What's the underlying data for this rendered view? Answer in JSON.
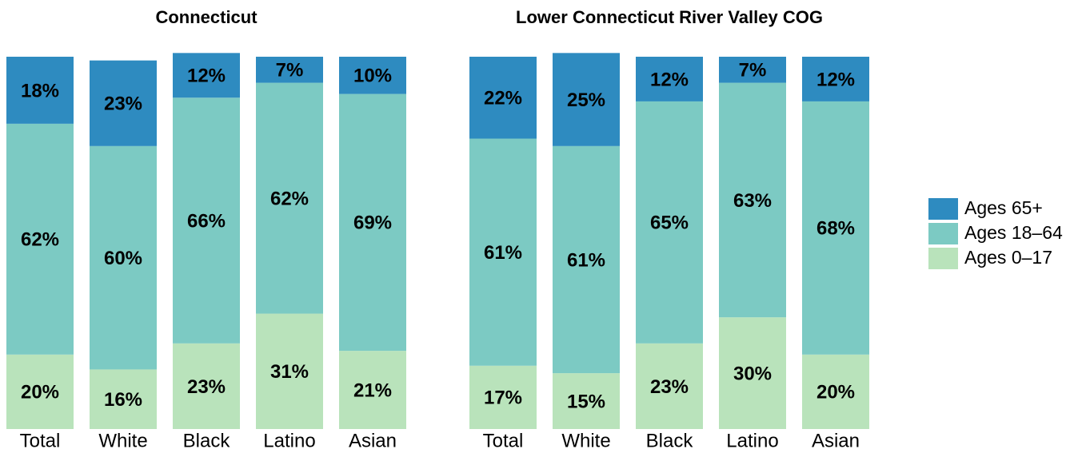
{
  "chart_data": [
    {
      "type": "stacked_bar",
      "title": "Connecticut",
      "categories": [
        "Total",
        "White",
        "Black",
        "Latino",
        "Asian"
      ],
      "ylim": [
        0,
        100
      ],
      "legend": "right",
      "series": [
        {
          "name": "Ages 0–17",
          "color": "#b9e3bb",
          "values": [
            20,
            16,
            23,
            31,
            21
          ],
          "value_labels": [
            "20%",
            "16%",
            "23%",
            "31%",
            "21%"
          ]
        },
        {
          "name": "Ages 18–64",
          "color": "#7ccac3",
          "values": [
            62,
            60,
            66,
            62,
            69
          ],
          "value_labels": [
            "62%",
            "60%",
            "66%",
            "62%",
            "69%"
          ]
        },
        {
          "name": "Ages 65+",
          "color": "#2e8bc0",
          "values": [
            18,
            23,
            12,
            7,
            10
          ],
          "value_labels": [
            "18%",
            "23%",
            "12%",
            "7%",
            "10%"
          ]
        }
      ]
    },
    {
      "type": "stacked_bar",
      "title": "Lower Connecticut River Valley COG",
      "categories": [
        "Total",
        "White",
        "Black",
        "Latino",
        "Asian"
      ],
      "ylim": [
        0,
        100
      ],
      "series": [
        {
          "color": "#b9e3bb",
          "values": [
            17,
            15,
            23,
            30,
            20
          ],
          "value_labels": [
            "17%",
            "15%",
            "23%",
            "30%",
            "20%"
          ]
        },
        {
          "color": "#7ccac3",
          "values": [
            61,
            61,
            65,
            63,
            68
          ],
          "value_labels": [
            "61%",
            "61%",
            "65%",
            "63%",
            "68%"
          ]
        },
        {
          "color": "#2e8bc0",
          "values": [
            22,
            25,
            12,
            7,
            12
          ],
          "value_labels": [
            "22%",
            "25%",
            "12%",
            "7%",
            "12%"
          ]
        }
      ]
    }
  ]
}
